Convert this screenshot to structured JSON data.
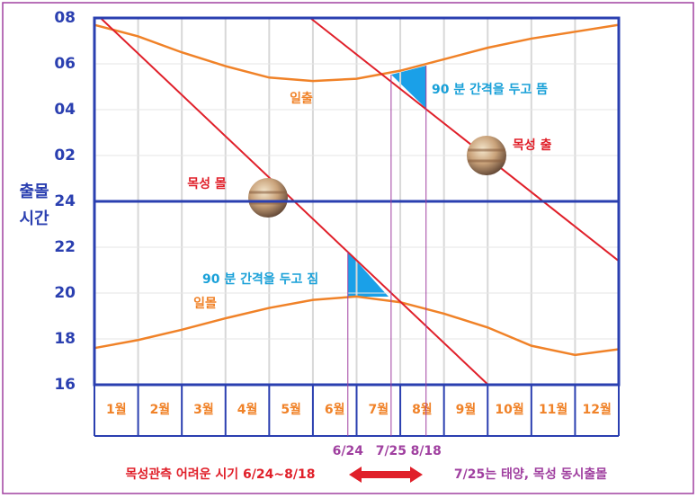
{
  "chart_data": {
    "type": "line",
    "ylabel": [
      "출몰",
      "시간"
    ],
    "categories": [
      "1월",
      "2월",
      "3월",
      "4월",
      "5월",
      "6월",
      "7월",
      "8월",
      "9월",
      "10월",
      "11월",
      "12월"
    ],
    "xlim": [
      0,
      12
    ],
    "ylim": [
      16,
      32
    ],
    "yticks": [
      16,
      18,
      20,
      22,
      24,
      {
        "value": 26,
        "label": "02"
      },
      {
        "value": 28,
        "label": "04"
      },
      {
        "value": 30,
        "label": "06"
      },
      {
        "value": 32,
        "label": "08"
      }
    ],
    "hline": 24,
    "series": [
      {
        "name": "일출",
        "color": "#f08228",
        "x": [
          0,
          1,
          2,
          3,
          4,
          5,
          6,
          7,
          8,
          9,
          10,
          11,
          12
        ],
        "values": [
          31.7,
          31.2,
          30.5,
          29.9,
          29.4,
          29.25,
          29.35,
          29.7,
          30.2,
          30.7,
          31.1,
          31.4,
          31.7
        ]
      },
      {
        "name": "일몰",
        "color": "#f08228",
        "x": [
          0,
          1,
          2,
          3,
          4,
          5,
          6,
          7,
          8,
          9,
          10,
          11,
          12
        ],
        "values": [
          17.6,
          17.95,
          18.4,
          18.9,
          19.35,
          19.7,
          19.85,
          19.6,
          19.1,
          18.5,
          17.7,
          17.3,
          17.55
        ]
      },
      {
        "name": "목성 출",
        "color": "#e0202a",
        "x": [
          4.94,
          12
        ],
        "values": [
          32,
          21.4
        ]
      },
      {
        "name": "목성 몰",
        "color": "#e0202a",
        "x": [
          0.14,
          9.01
        ],
        "values": [
          32,
          16
        ]
      }
    ],
    "markers": [
      {
        "x": 5.8,
        "label": "6/24"
      },
      {
        "x": 6.79,
        "label": "7/25"
      },
      {
        "x": 7.59,
        "label": "8/18"
      }
    ],
    "annotations": {
      "rise_gap": "90 분 간격을 두고 뜸",
      "set_gap": "90 분 간격을 두고 짐"
    },
    "footer": {
      "left": "목성관측 어려운 시기 6/24~8/18",
      "right": "7/25는 태양, 목성 동시출몰"
    }
  }
}
